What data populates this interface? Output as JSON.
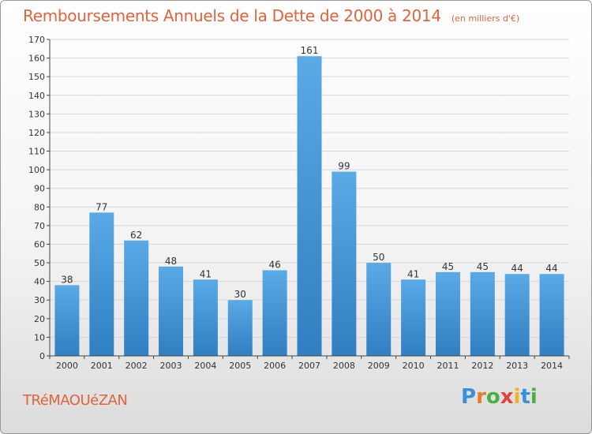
{
  "header": {
    "title": "Remboursements Annuels de la Dette de 2000 à 2014",
    "subtitle": "(en milliers d'€)"
  },
  "footer": {
    "commune": "TRéMAOUéZAN",
    "logo_text": "Proxiti"
  },
  "colors": {
    "title": "#e0633c",
    "bar_light": "#5aaae6",
    "bar_dark": "#2f7fc2",
    "logo": [
      "#3a8fd6",
      "#e97a2b",
      "#4caf3e",
      "#e2433a",
      "#f0b320",
      "#3a8fd6",
      "#4caf3e"
    ]
  },
  "chart_data": {
    "type": "bar",
    "categories": [
      "2000",
      "2001",
      "2002",
      "2003",
      "2004",
      "2005",
      "2006",
      "2007",
      "2008",
      "2009",
      "2010",
      "2011",
      "2012",
      "2013",
      "2014"
    ],
    "values": [
      38,
      77,
      62,
      48,
      41,
      30,
      46,
      161,
      99,
      50,
      41,
      45,
      45,
      44,
      44
    ],
    "ylim": [
      0,
      170
    ],
    "yticks": [
      0,
      10,
      20,
      30,
      40,
      50,
      60,
      70,
      80,
      90,
      100,
      110,
      120,
      130,
      140,
      150,
      160,
      170
    ],
    "grid": true,
    "data_labels": true
  }
}
